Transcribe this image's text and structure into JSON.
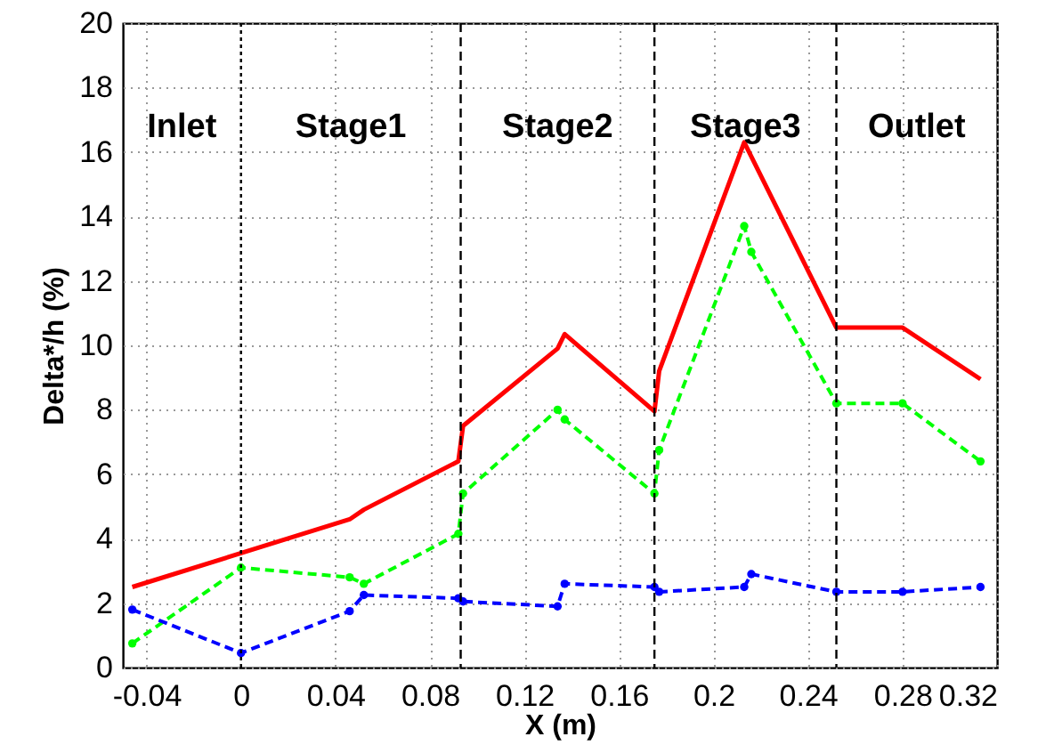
{
  "chart_data": {
    "type": "line",
    "xlabel": "X (m)",
    "ylabel": "Delta*/h (%)",
    "xlim": [
      -0.05,
      0.32
    ],
    "xticks": [
      -0.04,
      0,
      0.04,
      0.08,
      0.12,
      0.16,
      0.2,
      0.24,
      0.28,
      0.32
    ],
    "ylim": [
      0,
      20
    ],
    "yticks": [
      0,
      2,
      4,
      6,
      8,
      10,
      12,
      14,
      16,
      18,
      20
    ],
    "grid": true,
    "x": [
      -0.046,
      0,
      0.046,
      0.052,
      0.092,
      0.094,
      0.134,
      0.137,
      0.175,
      0.177,
      0.213,
      0.216,
      0.252,
      0.28,
      0.313
    ],
    "series": [
      {
        "color": "#ff0000",
        "line_style": "solid",
        "marker": "none",
        "x": [
          -0.046,
          0.046,
          0.052,
          0.092,
          0.094,
          0.134,
          0.137,
          0.175,
          0.177,
          0.213,
          0.252,
          0.28,
          0.313
        ],
        "values": [
          2.5,
          4.6,
          4.9,
          6.4,
          7.5,
          9.9,
          10.35,
          7.95,
          9.2,
          16.3,
          10.55,
          10.55,
          8.95
        ]
      },
      {
        "color": "#00ff00",
        "line_style": "dashed",
        "marker": "circle",
        "values": [
          0.75,
          3.1,
          2.8,
          2.6,
          4.15,
          5.4,
          8.0,
          7.7,
          5.4,
          6.75,
          13.7,
          12.9,
          8.2,
          8.2,
          6.4
        ]
      },
      {
        "color": "#0000ff",
        "line_style": "dashed",
        "marker": "circle",
        "values": [
          1.8,
          0.45,
          1.75,
          2.25,
          2.15,
          2.05,
          1.9,
          2.6,
          2.5,
          2.35,
          2.5,
          2.9,
          2.35,
          2.35,
          2.5
        ]
      }
    ],
    "ref_lines": [
      {
        "axis": "x",
        "value": 0,
        "color": "#000000",
        "line_style": "dotted"
      },
      {
        "axis": "x",
        "value": 0.093,
        "color": "#000000",
        "line_style": "dashed"
      },
      {
        "axis": "x",
        "value": 0.175,
        "color": "#000000",
        "line_style": "dashed"
      },
      {
        "axis": "x",
        "value": 0.252,
        "color": "#000000",
        "line_style": "dashed"
      }
    ],
    "annotations": [
      "Inlet",
      "Stage1",
      "Stage2",
      "Stage3",
      "Outlet"
    ]
  }
}
